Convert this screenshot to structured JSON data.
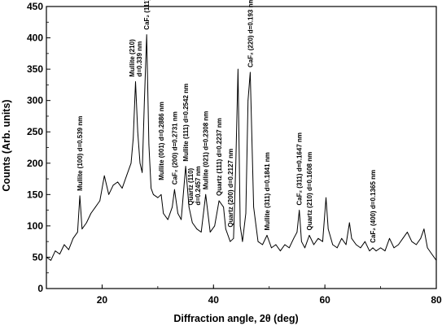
{
  "chart_data": {
    "type": "line",
    "xlabel": "Diffraction angle, 2θ (deg)",
    "ylabel": "Counts (Arb. units)",
    "xlim": [
      10,
      80
    ],
    "ylim": [
      0,
      450
    ],
    "x_ticks": [
      "20",
      "40",
      "60",
      "80"
    ],
    "y_ticks": [
      "0",
      "50",
      "100",
      "150",
      "200",
      "250",
      "300",
      "350",
      "400",
      "450"
    ],
    "grid": false,
    "series": [
      {
        "name": "",
        "x": [
          10,
          10.8,
          11.6,
          12.4,
          13.2,
          14,
          14.8,
          15.6,
          16,
          16.4,
          17.2,
          18,
          18.8,
          19.6,
          20.4,
          21.2,
          22,
          22.8,
          23.6,
          24.4,
          25.2,
          25.6,
          26,
          26.4,
          26.8,
          27.2,
          27.6,
          28,
          28.4,
          28.8,
          29.2,
          30,
          30.6,
          31,
          31.8,
          32.6,
          33,
          33.6,
          34.2,
          35,
          35.6,
          36.2,
          37,
          37.8,
          38.6,
          39.4,
          40.2,
          41,
          41.8,
          42.2,
          42.6,
          43,
          43.6,
          44,
          44.4,
          44.8,
          45.2,
          45.8,
          46.2,
          46.6,
          47.2,
          48,
          48.8,
          49.6,
          50.4,
          51.2,
          52,
          52.8,
          53.6,
          54.4,
          55,
          55.4,
          55.8,
          56.4,
          57.2,
          58,
          58.8,
          59.6,
          60.2,
          60.6,
          61.4,
          62.2,
          63,
          63.8,
          64.4,
          64.8,
          65.6,
          66.4,
          67.2,
          68,
          68.6,
          69.2,
          70,
          70.8,
          71.6,
          72.4,
          73.2,
          74,
          74.8,
          75.6,
          76.4,
          77.2,
          77.8,
          78.4,
          79.2,
          80
        ],
        "y": [
          50,
          45,
          60,
          55,
          70,
          62,
          80,
          90,
          148,
          95,
          105,
          120,
          130,
          140,
          180,
          150,
          165,
          170,
          160,
          180,
          200,
          240,
          330,
          250,
          200,
          185,
          300,
          405,
          230,
          160,
          150,
          145,
          150,
          120,
          110,
          130,
          158,
          120,
          110,
          195,
          130,
          105,
          95,
          90,
          150,
          90,
          100,
          140,
          130,
          95,
          85,
          75,
          80,
          200,
          350,
          100,
          75,
          120,
          300,
          345,
          130,
          75,
          70,
          85,
          65,
          70,
          60,
          70,
          65,
          80,
          90,
          125,
          75,
          65,
          85,
          70,
          80,
          75,
          145,
          95,
          70,
          65,
          80,
          70,
          105,
          80,
          70,
          65,
          75,
          60,
          65,
          60,
          65,
          60,
          80,
          65,
          70,
          80,
          90,
          75,
          70,
          80,
          95,
          65,
          55,
          45
        ]
      }
    ],
    "annotations": [
      {
        "x": 16,
        "y": 148,
        "lines": [
          "Mullite (100) d=0.539 nm"
        ]
      },
      {
        "x": 26,
        "y": 330,
        "lines": [
          "Mullite (210)",
          "d=0.339 nm"
        ]
      },
      {
        "x": 28,
        "y": 405,
        "lines": [
          "CaF₂ (111)"
        ]
      },
      {
        "x": 30.6,
        "y": 165,
        "lines": [
          "Mullite (001) d=0.2886 nm"
        ]
      },
      {
        "x": 33,
        "y": 158,
        "lines": [
          "CaF₂ (200) d=0.2731 nm"
        ]
      },
      {
        "x": 35,
        "y": 195,
        "lines": [
          "Mullite (111) d=0.2542 nm"
        ]
      },
      {
        "x": 36.5,
        "y": 125,
        "lines": [
          "Quartz (110)",
          "d=0.2457 nm"
        ]
      },
      {
        "x": 38.6,
        "y": 150,
        "lines": [
          "Mullite (021) d=0.2308 nm"
        ]
      },
      {
        "x": 41,
        "y": 140,
        "lines": [
          "Quartz (111) d=0.2237 nm"
        ]
      },
      {
        "x": 43,
        "y": 90,
        "lines": [
          "Quartz (200) d=0.2127 nm"
        ]
      },
      {
        "x": 46.6,
        "y": 345,
        "lines": [
          "CaF₂ (220) d=0.193 nm"
        ]
      },
      {
        "x": 49.6,
        "y": 85,
        "lines": [
          "Mullite (311) d=0.1841 nm"
        ]
      },
      {
        "x": 55.4,
        "y": 125,
        "lines": [
          "CaF₂ (311) d=0.1647 nm"
        ]
      },
      {
        "x": 57.2,
        "y": 85,
        "lines": [
          "Quartz (210) d=0.1608 nm"
        ]
      },
      {
        "x": 68.6,
        "y": 65,
        "lines": [
          "CaF₂ (400) d=0.1365 nm"
        ]
      }
    ]
  }
}
